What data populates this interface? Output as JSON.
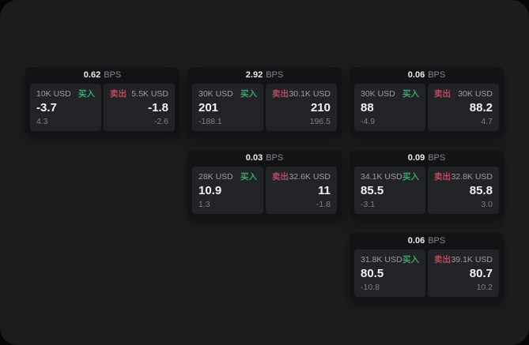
{
  "labels": {
    "bps_unit": "BPS",
    "buy": "买入",
    "sell": "卖出"
  },
  "colors": {
    "surface_background": "#1b1c1e",
    "card_background": "#121315",
    "panel_background": "#222327",
    "buy_green": "#3da56b",
    "sell_red": "#b84b5f"
  },
  "cards": [
    {
      "bps": "0.62",
      "buy": {
        "amount": "10K USD",
        "value": "-3.7",
        "sub": "4.3"
      },
      "sell": {
        "amount": "5.5K USD",
        "value": "-1.8",
        "sub": "-2.6"
      }
    },
    {
      "bps": "2.92",
      "buy": {
        "amount": "30K USD",
        "value": "201",
        "sub": "-188.1"
      },
      "sell": {
        "amount": "30.1K USD",
        "value": "210",
        "sub": "196.5"
      }
    },
    {
      "bps": "0.06",
      "buy": {
        "amount": "30K USD",
        "value": "88",
        "sub": "-4.9"
      },
      "sell": {
        "amount": "30K USD",
        "value": "88.2",
        "sub": "4.7"
      }
    },
    {
      "bps": "0.03",
      "buy": {
        "amount": "28K USD",
        "value": "10.9",
        "sub": "1.3"
      },
      "sell": {
        "amount": "32.6K USD",
        "value": "11",
        "sub": "-1.8"
      }
    },
    {
      "bps": "0.09",
      "buy": {
        "amount": "34.1K USD",
        "value": "85.5",
        "sub": "-3.1"
      },
      "sell": {
        "amount": "32.8K USD",
        "value": "85.8",
        "sub": "3.0"
      }
    },
    {
      "bps": "0.06",
      "buy": {
        "amount": "31.8K USD",
        "value": "80.5",
        "sub": "-10.8"
      },
      "sell": {
        "amount": "39.1K USD",
        "value": "80.7",
        "sub": "10.2"
      }
    }
  ]
}
